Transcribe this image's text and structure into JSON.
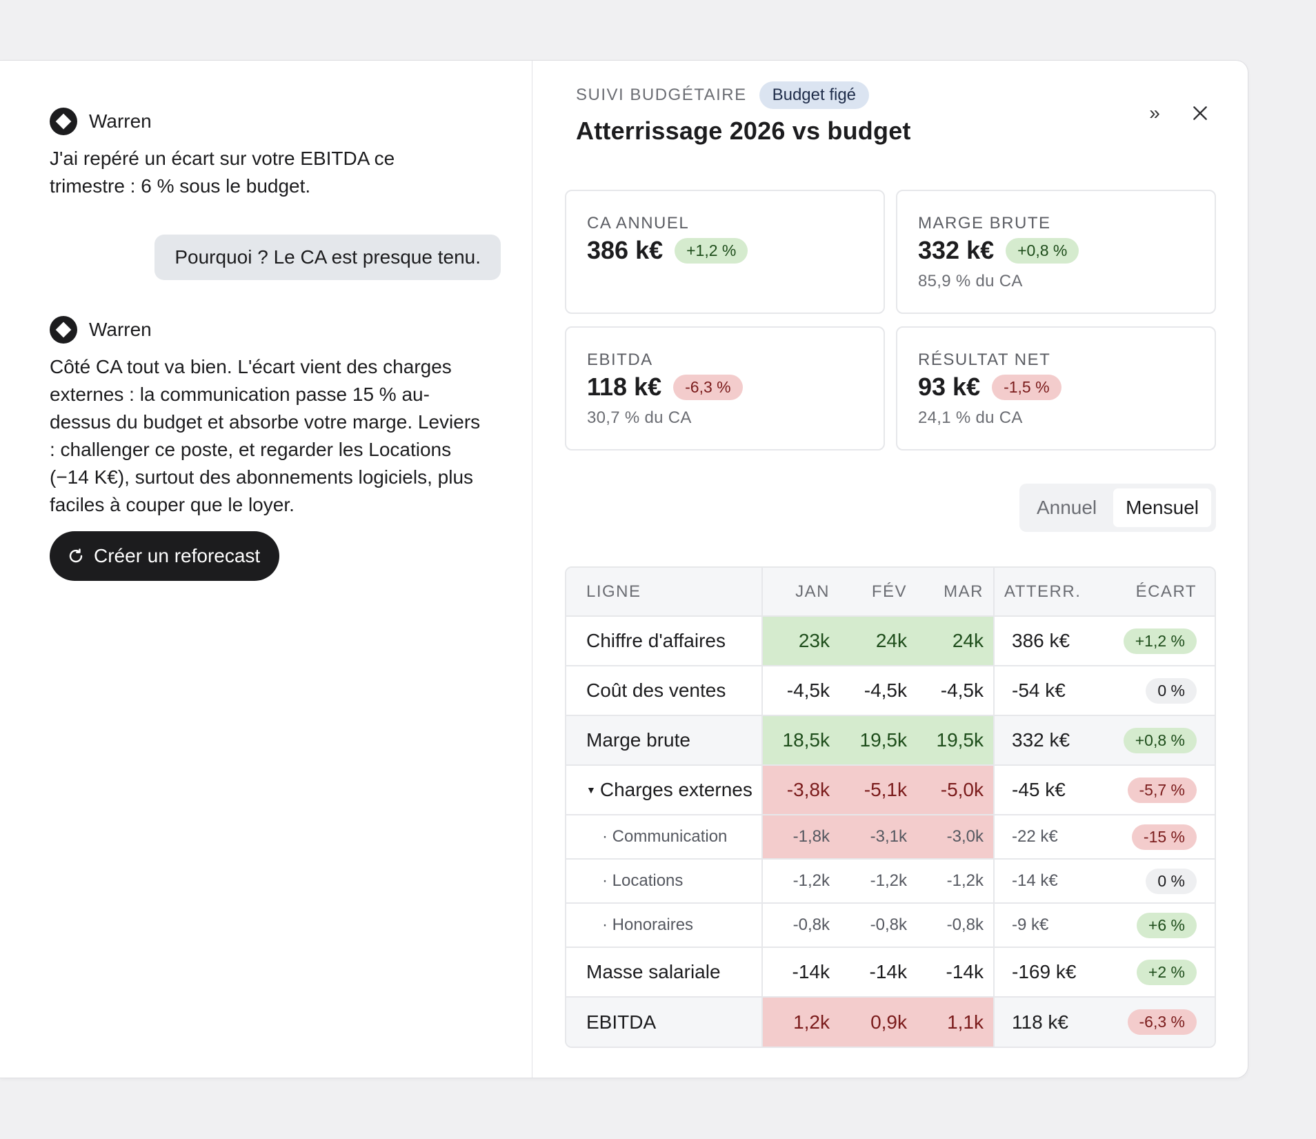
{
  "chat": {
    "messages": [
      {
        "author": "Warren",
        "text": "J'ai repéré un écart sur votre EBITDA ce trimestre : 6 % sous le budget."
      },
      {
        "user_text": "Pourquoi ? Le CA est presque tenu."
      },
      {
        "author": "Warren",
        "text": "Côté CA tout va bien. L'écart vient des charges externes : la communication passe 15 % au-dessus du budget et absorbe votre marge. Leviers : challenger ce poste, et regarder les Locations (−14 K€), surtout des abonnements logiciels, plus faciles à couper que le loyer."
      }
    ],
    "action_label": "Créer un reforecast"
  },
  "panel": {
    "eyebrow": "SUIVI BUDGÉTAIRE",
    "badge": "Budget figé",
    "title": "Atterrissage 2026 vs budget",
    "expand_glyph": "»",
    "kpis": [
      {
        "label": "CA ANNUEL",
        "value": "386 k€",
        "delta": "+1,2 %",
        "tone": "pos",
        "sub": ""
      },
      {
        "label": "MARGE BRUTE",
        "value": "332 k€",
        "delta": "+0,8 %",
        "tone": "pos",
        "sub": "85,9 % du CA"
      },
      {
        "label": "EBITDA",
        "value": "118 k€",
        "delta": "-6,3 %",
        "tone": "neg",
        "sub": "30,7 % du CA"
      },
      {
        "label": "RÉSULTAT NET",
        "value": "93 k€",
        "delta": "-1,5 %",
        "tone": "neg",
        "sub": "24,1 % du CA"
      }
    ],
    "toggle": {
      "options": [
        "Annuel",
        "Mensuel"
      ],
      "selected": "Mensuel"
    },
    "table": {
      "headers": {
        "line": "LIGNE",
        "m1": "JAN",
        "m2": "FÉV",
        "m3": "MAR",
        "landing": "ATTERR.",
        "gap": "ÉCART"
      },
      "rows": [
        {
          "label": "Chiffre d'affaires",
          "m1": "23k",
          "m2": "24k",
          "m3": "24k",
          "landing": "386 k€",
          "gap": "+1,2 %",
          "tone": "pos",
          "heat": "g",
          "kind": "main",
          "shade": false,
          "caret": ""
        },
        {
          "label": "Coût des ventes",
          "m1": "-4,5k",
          "m2": "-4,5k",
          "m3": "-4,5k",
          "landing": "-54 k€",
          "gap": "0 %",
          "tone": "neu",
          "heat": "",
          "kind": "main",
          "shade": false,
          "caret": ""
        },
        {
          "label": "Marge brute",
          "m1": "18,5k",
          "m2": "19,5k",
          "m3": "19,5k",
          "landing": "332 k€",
          "gap": "+0,8 %",
          "tone": "pos",
          "heat": "g",
          "kind": "main",
          "shade": true,
          "caret": ""
        },
        {
          "label": "Charges externes",
          "m1": "-3,8k",
          "m2": "-5,1k",
          "m3": "-5,0k",
          "landing": "-45 k€",
          "gap": "-5,7 %",
          "tone": "neg",
          "heat": "r",
          "kind": "main",
          "shade": false,
          "caret": "▼"
        },
        {
          "label": "· Communication",
          "m1": "-1,8k",
          "m2": "-3,1k",
          "m3": "-3,0k",
          "landing": "-22 k€",
          "gap": "-15 %",
          "tone": "neg",
          "heat": "r",
          "kind": "sub",
          "shade": false,
          "caret": ""
        },
        {
          "label": "· Locations",
          "m1": "-1,2k",
          "m2": "-1,2k",
          "m3": "-1,2k",
          "landing": "-14 k€",
          "gap": "0 %",
          "tone": "neu",
          "heat": "",
          "kind": "sub",
          "shade": false,
          "caret": ""
        },
        {
          "label": "· Honoraires",
          "m1": "-0,8k",
          "m2": "-0,8k",
          "m3": "-0,8k",
          "landing": "-9 k€",
          "gap": "+6 %",
          "tone": "pos",
          "heat": "",
          "kind": "sub",
          "shade": false,
          "caret": ""
        },
        {
          "label": "Masse salariale",
          "m1": "-14k",
          "m2": "-14k",
          "m3": "-14k",
          "landing": "-169 k€",
          "gap": "+2 %",
          "tone": "pos",
          "heat": "",
          "kind": "main",
          "shade": false,
          "caret": ""
        },
        {
          "label": "EBITDA",
          "m1": "1,2k",
          "m2": "0,9k",
          "m3": "1,1k",
          "landing": "118 k€",
          "gap": "-6,3 %",
          "tone": "neg",
          "heat": "r",
          "kind": "main",
          "shade": true,
          "caret": ""
        }
      ]
    }
  },
  "colors": {
    "accent_dark": "#1c1c1e",
    "positive_bg": "#d5ebce",
    "negative_bg": "#f3cccc",
    "badge_bg": "#dbe4f1"
  },
  "icons": {
    "assistant": "logo-icon",
    "action": "refresh-icon",
    "expand": "expand-icon",
    "close": "close-icon",
    "caret": "caret-down-icon"
  }
}
